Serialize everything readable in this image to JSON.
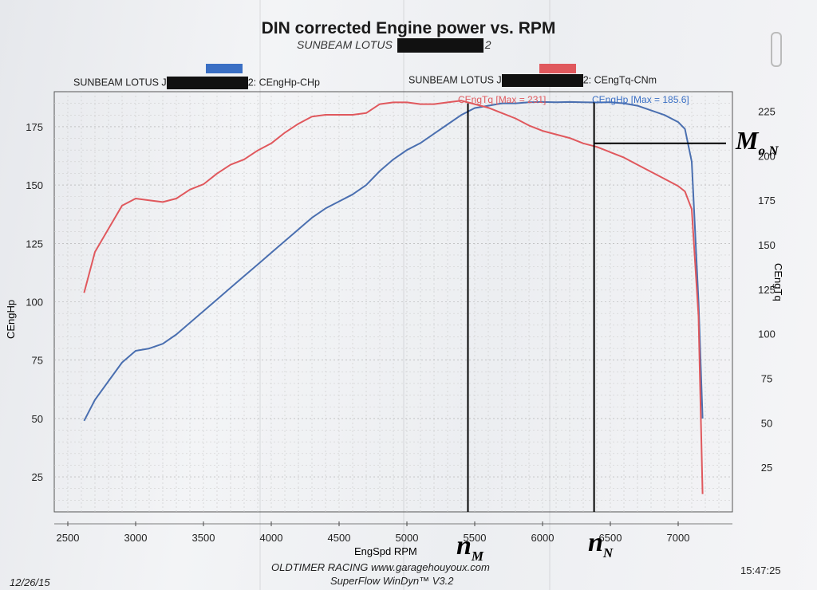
{
  "chart_data": {
    "type": "line",
    "title": "DIN corrected Engine power vs. RPM",
    "subtitle": "SUNBEAM LOTUS",
    "subtitle_suffix": "2",
    "xlabel": "EngSpd RPM",
    "ylabel_left": "CEngHp",
    "ylabel_right": "CEngTq",
    "xlim": [
      2400,
      7400
    ],
    "xticks": [
      2500,
      3000,
      3500,
      4000,
      4500,
      5000,
      5500,
      6000,
      6500,
      7000
    ],
    "ylim_left": [
      10,
      190
    ],
    "yticks_left": [
      25,
      50,
      75,
      100,
      125,
      150,
      175
    ],
    "ylim_right": [
      0,
      236
    ],
    "yticks_right": [
      25,
      50,
      75,
      100,
      125,
      150,
      175,
      200,
      225
    ],
    "grid": true,
    "legend": [
      {
        "prefix": "SUNBEAM LOTUS J",
        "suffix": "2: CEngHp-CHp",
        "color": "#3a6fc4"
      },
      {
        "prefix": "SUNBEAM LOTUS J",
        "suffix": "2: CEngTq-CNm",
        "color": "#e0585d"
      }
    ],
    "series": [
      {
        "name": "CEngHp",
        "axis": "left",
        "color": "#4a6fb0",
        "max_label": "CEngHp [Max = 185.6]",
        "x": [
          2620,
          2700,
          2800,
          2900,
          3000,
          3100,
          3200,
          3300,
          3400,
          3500,
          3600,
          3700,
          3800,
          3900,
          4000,
          4100,
          4200,
          4300,
          4400,
          4500,
          4600,
          4700,
          4800,
          4900,
          5000,
          5100,
          5200,
          5300,
          5400,
          5500,
          5600,
          5700,
          5800,
          5900,
          6000,
          6100,
          6200,
          6300,
          6400,
          6500,
          6600,
          6700,
          6800,
          6900,
          7000,
          7050,
          7100,
          7150,
          7180
        ],
        "values": [
          49,
          58,
          66,
          74,
          79,
          80,
          82,
          86,
          91,
          96,
          101,
          106,
          111,
          116,
          121,
          126,
          131,
          136,
          140,
          143,
          146,
          150,
          156,
          161,
          165,
          168,
          172,
          176,
          180,
          183,
          184,
          185,
          185,
          185.5,
          185.6,
          185.5,
          185.6,
          185.5,
          185.4,
          185.5,
          185,
          184,
          182,
          180,
          177,
          174,
          160,
          100,
          50
        ]
      },
      {
        "name": "CEngTq",
        "axis": "right",
        "color": "#e0585d",
        "max_label": "CEngTq [Max = 231]",
        "x": [
          2620,
          2700,
          2800,
          2900,
          3000,
          3100,
          3200,
          3300,
          3400,
          3500,
          3600,
          3700,
          3800,
          3900,
          4000,
          4100,
          4200,
          4300,
          4400,
          4500,
          4600,
          4700,
          4800,
          4900,
          5000,
          5100,
          5200,
          5300,
          5400,
          5500,
          5600,
          5700,
          5800,
          5900,
          6000,
          6100,
          6200,
          6300,
          6400,
          6500,
          6600,
          6700,
          6800,
          6900,
          7000,
          7050,
          7100,
          7150,
          7180
        ],
        "values": [
          123,
          146,
          159,
          172,
          176,
          175,
          174,
          176,
          181,
          184,
          190,
          195,
          198,
          203,
          207,
          213,
          218,
          222,
          223,
          223,
          223,
          224,
          229,
          230,
          230,
          229,
          229,
          230,
          231,
          229,
          227,
          224,
          221,
          217,
          214,
          212,
          210,
          207,
          205,
          202,
          199,
          195,
          191,
          187,
          183,
          180,
          170,
          110,
          10
        ]
      }
    ],
    "annotations": {
      "n_M": {
        "rpm": 5450,
        "hp": 185
      },
      "n_N": {
        "rpm": 6380,
        "hp": 185.6
      },
      "M_oN": {
        "torque": 207
      }
    }
  },
  "labels": {
    "n_M_main": "n",
    "n_M_sub": "M",
    "n_N_main": "n",
    "n_N_sub": "N",
    "M_oN_main": "M",
    "M_oN_sub": "o N"
  },
  "footer": {
    "date": "12/26/15",
    "company": "OLDTIMER RACING www.garagehouyoux.com",
    "software": "SuperFlow WinDyn™ V3.2",
    "time": "15:47:25"
  }
}
